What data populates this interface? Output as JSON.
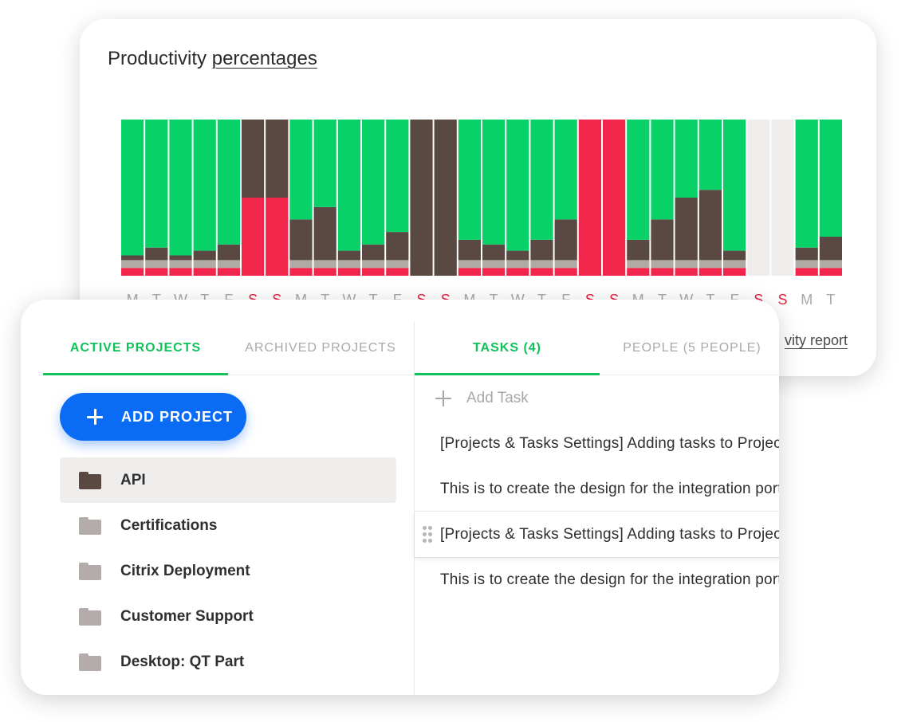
{
  "chart_card": {
    "title_prefix": "Productivity",
    "title_link": "percentages",
    "report_link": "vity report"
  },
  "chart_data": {
    "type": "bar",
    "stacked": true,
    "normalized": true,
    "categories": [
      "M",
      "T",
      "W",
      "T",
      "F",
      "S",
      "S",
      "M",
      "T",
      "W",
      "T",
      "F",
      "S",
      "S",
      "M",
      "T",
      "W",
      "T",
      "F",
      "S",
      "S",
      "M",
      "T",
      "W",
      "T",
      "F",
      "S",
      "S",
      "M",
      "T"
    ],
    "weekend": [
      false,
      false,
      false,
      false,
      false,
      true,
      true,
      false,
      false,
      false,
      false,
      false,
      true,
      true,
      false,
      false,
      false,
      false,
      false,
      true,
      true,
      false,
      false,
      false,
      false,
      false,
      true,
      true,
      false,
      false
    ],
    "series": [
      {
        "color": "#f2264a",
        "values": [
          5,
          5,
          5,
          5,
          5,
          50,
          50,
          5,
          5,
          5,
          5,
          5,
          0,
          0,
          5,
          5,
          5,
          5,
          5,
          100,
          100,
          5,
          5,
          5,
          5,
          5,
          0,
          0,
          5,
          5
        ]
      },
      {
        "color": "#b0aaa5",
        "values": [
          5,
          5,
          5,
          5,
          5,
          0,
          0,
          5,
          5,
          5,
          5,
          5,
          0,
          0,
          5,
          5,
          5,
          5,
          5,
          0,
          0,
          5,
          5,
          5,
          5,
          5,
          0,
          0,
          5,
          5
        ]
      },
      {
        "color": "#594942",
        "values": [
          3,
          8,
          3,
          6,
          10,
          50,
          50,
          26,
          34,
          6,
          10,
          18,
          100,
          100,
          13,
          10,
          6,
          13,
          26,
          0,
          0,
          13,
          26,
          40,
          45,
          6,
          0,
          0,
          8,
          15
        ]
      },
      {
        "color": "#08d168",
        "values": [
          87,
          82,
          87,
          84,
          80,
          0,
          0,
          64,
          56,
          84,
          80,
          72,
          0,
          0,
          77,
          80,
          84,
          77,
          64,
          0,
          0,
          77,
          64,
          50,
          45,
          84,
          0,
          0,
          82,
          75
        ]
      },
      {
        "color": "#f0eeec",
        "values": [
          0,
          0,
          0,
          0,
          0,
          0,
          0,
          0,
          0,
          0,
          0,
          0,
          0,
          0,
          0,
          0,
          0,
          0,
          0,
          0,
          0,
          0,
          0,
          0,
          0,
          0,
          100,
          100,
          0,
          0
        ]
      }
    ],
    "ylim": [
      0,
      100
    ],
    "label_colors": {
      "weekday": "#a8a8a8",
      "weekend": "#e8203f"
    }
  },
  "projects_panel": {
    "tabs": [
      {
        "label": "ACTIVE PROJECTS",
        "active": true
      },
      {
        "label": "ARCHIVED PROJECTS",
        "active": false
      }
    ],
    "add_project_label": "ADD PROJECT",
    "projects": [
      {
        "name": "API",
        "selected": true,
        "icon": "folder-icon",
        "icon_color": "#594942"
      },
      {
        "name": "Certifications",
        "selected": false,
        "icon": "folder-icon",
        "icon_color": "#b3acaa"
      },
      {
        "name": "Citrix Deployment",
        "selected": false,
        "icon": "folder-icon",
        "icon_color": "#b3acaa"
      },
      {
        "name": "Customer Support",
        "selected": false,
        "icon": "folder-icon",
        "icon_color": "#b3acaa"
      },
      {
        "name": "Desktop: QT Part",
        "selected": false,
        "icon": "folder-icon",
        "icon_color": "#b3acaa"
      }
    ]
  },
  "tasks_panel": {
    "tabs": [
      {
        "label": "TASKS (4)",
        "active": true
      },
      {
        "label": "PEOPLE (5 PEOPLE)",
        "active": false
      }
    ],
    "add_task_label": "Add Task",
    "tasks": [
      {
        "text": "[Projects & Tasks Settings] Adding tasks to Projects",
        "dragging": false
      },
      {
        "text": "This is to create the design for the integration portal",
        "dragging": false
      },
      {
        "text": "[Projects & Tasks Settings] Adding tasks to Projects",
        "dragging": true
      },
      {
        "text": "This is to create the design for the integration portal",
        "dragging": false
      }
    ]
  },
  "colors": {
    "accent_green": "#10c25a",
    "primary_blue": "#0a6bf5"
  }
}
